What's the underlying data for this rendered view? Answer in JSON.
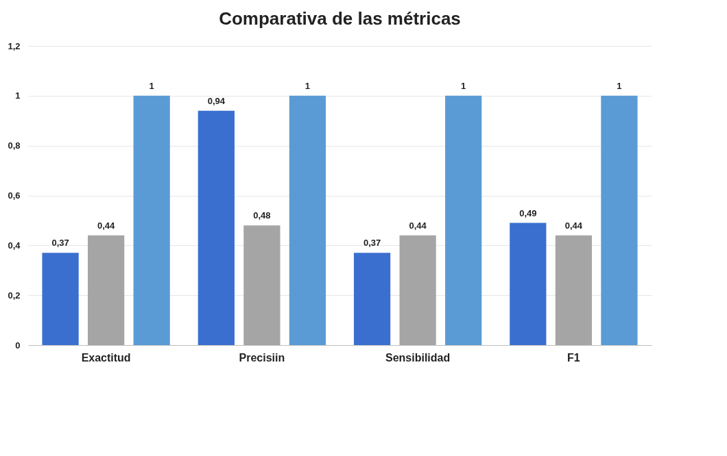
{
  "chart_data": {
    "type": "bar",
    "title": "Comparativa de las métricas",
    "categories": [
      "Exactitud",
      "Precisiin",
      "Sensibilidad",
      "F1"
    ],
    "series": [
      {
        "color": "#3b6fcf",
        "values": [
          0.37,
          0.94,
          0.37,
          0.49
        ],
        "value_labels": [
          "0,37",
          "0,94",
          "0,37",
          "0,49"
        ]
      },
      {
        "color": "#a5a5a5",
        "values": [
          0.44,
          0.48,
          0.44,
          0.44
        ],
        "value_labels": [
          "0,44",
          "0,48",
          "0,44",
          "0,44"
        ]
      },
      {
        "color": "#5b9bd5",
        "values": [
          1,
          1,
          1,
          1
        ],
        "value_labels": [
          "1",
          "1",
          "1",
          "1"
        ]
      }
    ],
    "ylim": [
      0,
      1.2
    ],
    "yticks": [
      0,
      {
        "value": 0.2,
        "label": "0,2"
      },
      {
        "value": 0.4,
        "label": "0,4"
      },
      {
        "value": 0.6,
        "label": "0,6"
      },
      {
        "value": 0.8,
        "label": "0,8"
      },
      1,
      {
        "value": 1.2,
        "label": "1,2"
      }
    ],
    "grid": "y",
    "legend": false
  }
}
